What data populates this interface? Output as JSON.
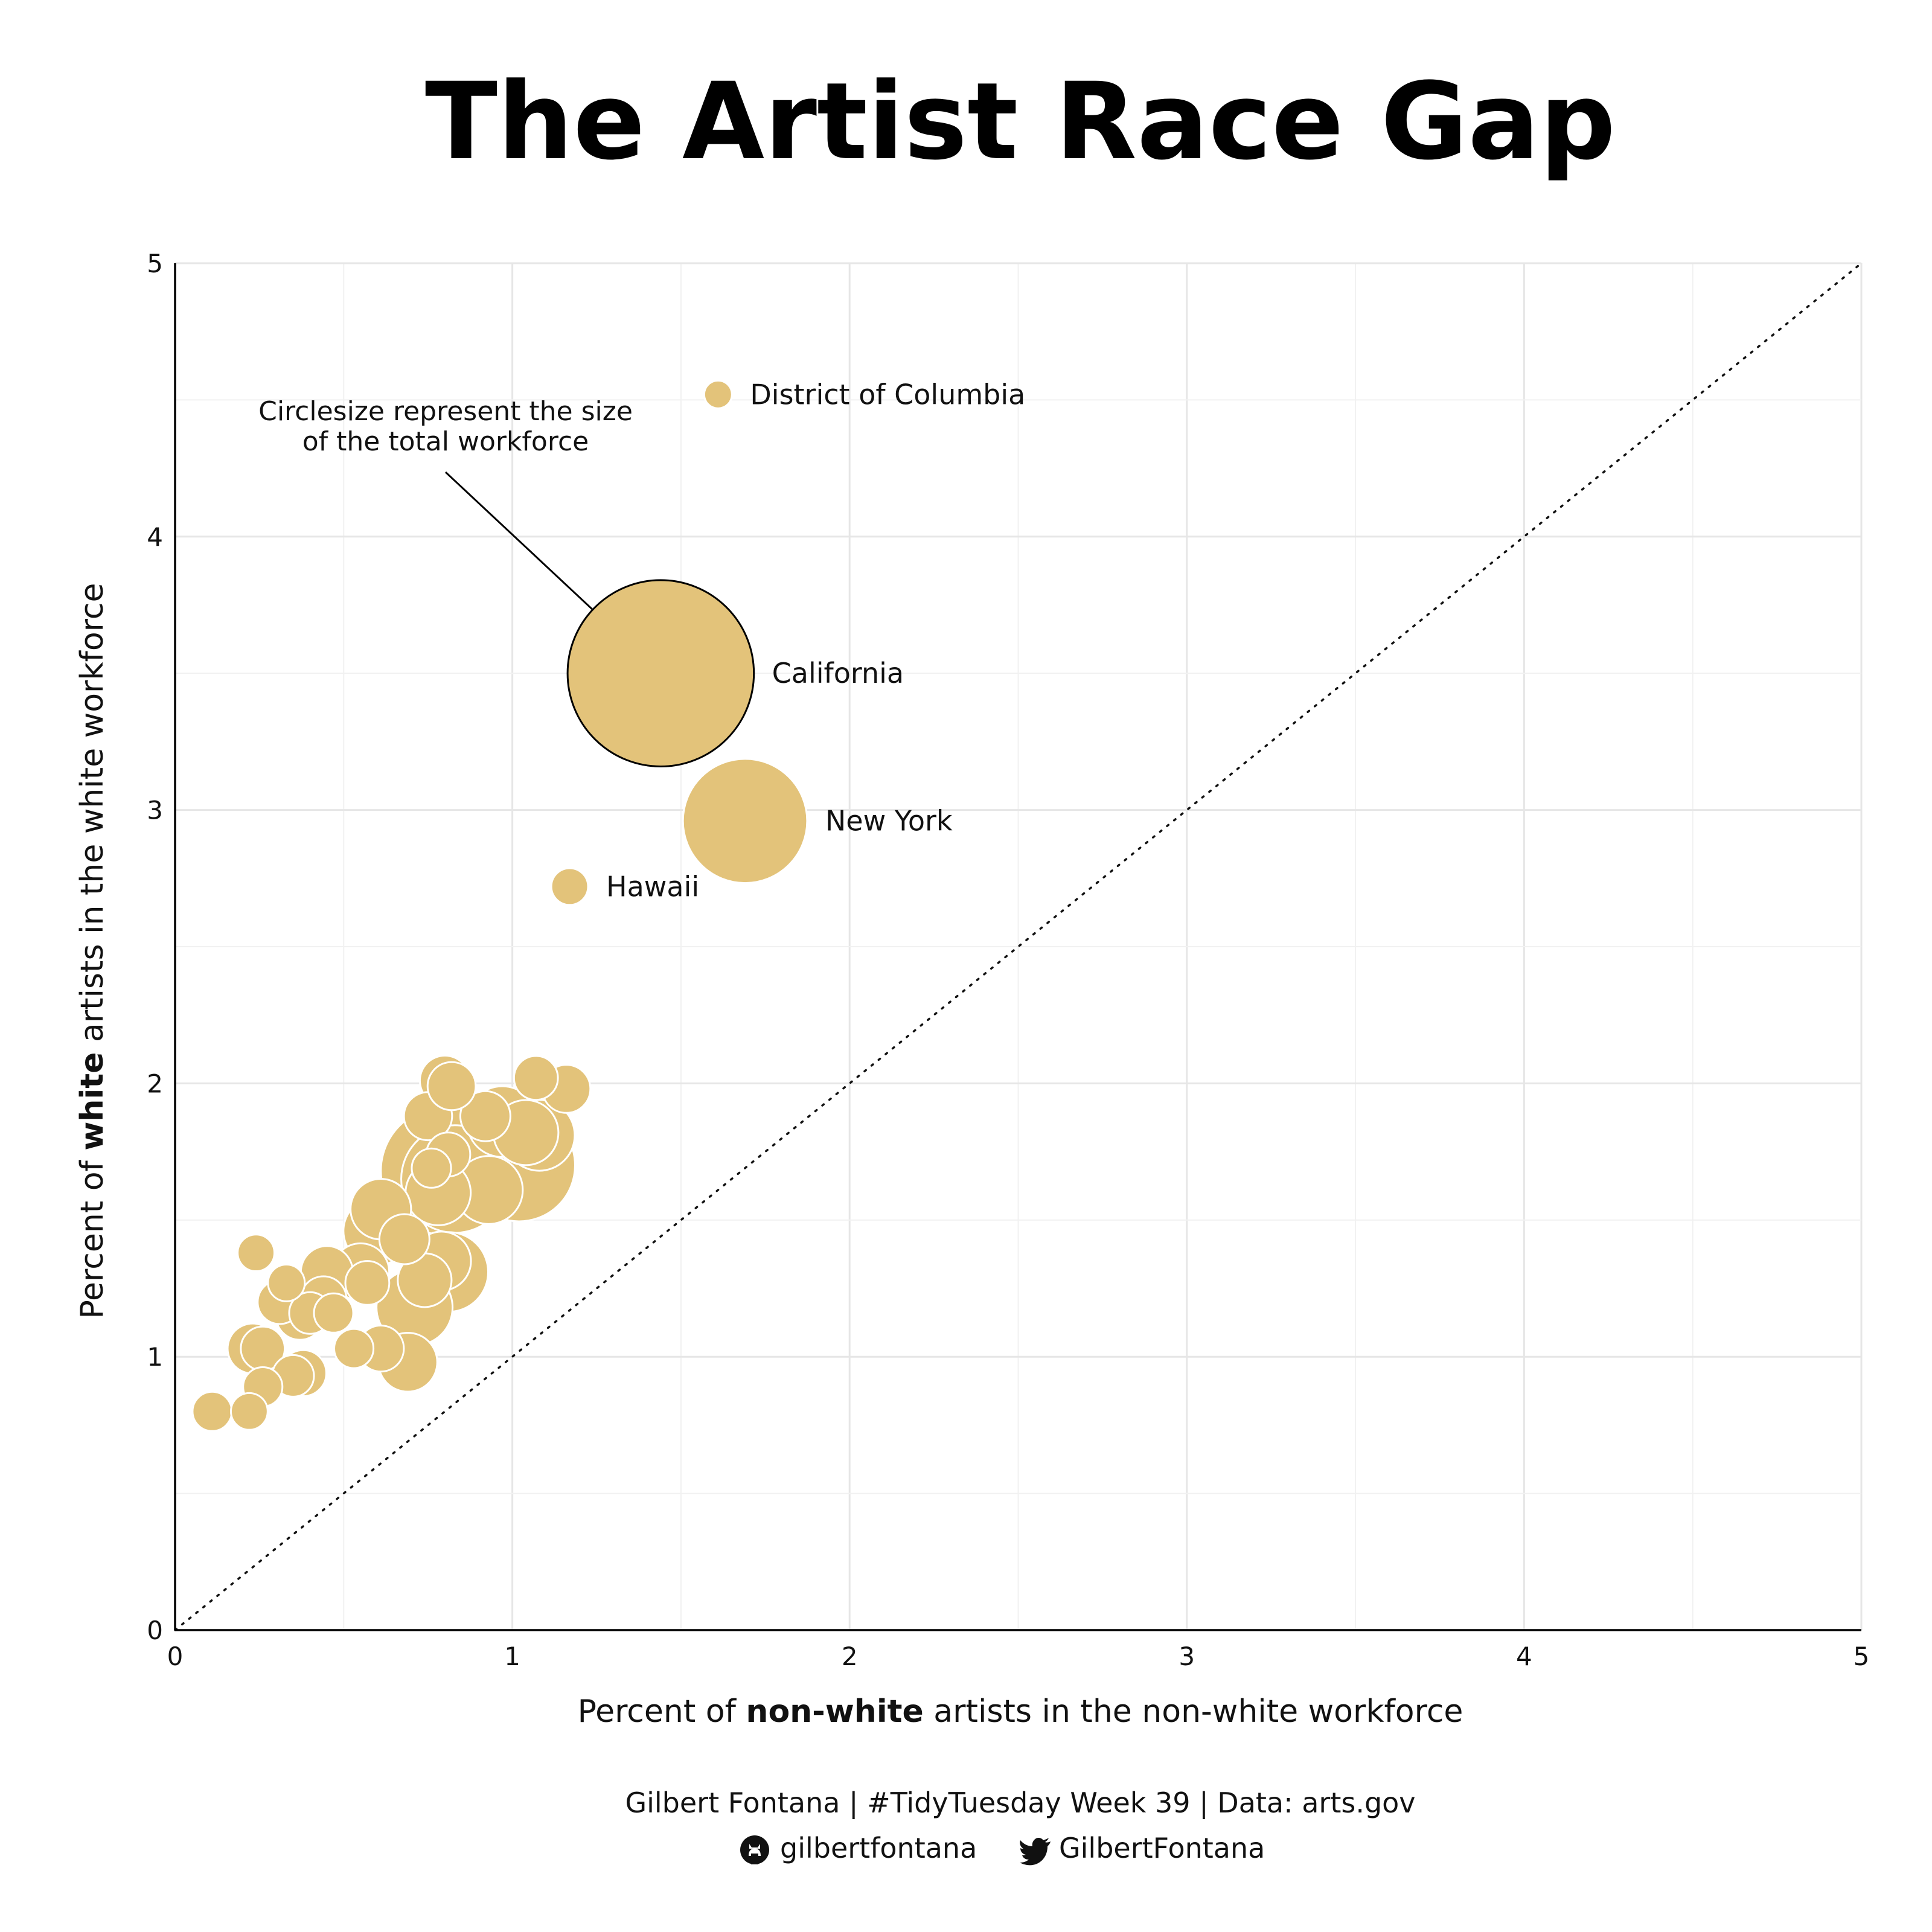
{
  "chart_data": {
    "type": "scatter",
    "title": "The Artist Race Gap",
    "xlabel": {
      "pre": "Percent of ",
      "bold": "non-white",
      "post": " artists in the non-white workforce"
    },
    "ylabel": {
      "pre": "Percent of ",
      "bold": "white",
      "post": " artists in the white workforce"
    },
    "xlim": [
      0,
      5
    ],
    "ylim": [
      0,
      5
    ],
    "x_ticks": [
      0,
      1,
      2,
      3,
      4,
      5
    ],
    "y_ticks": [
      0,
      1,
      2,
      3,
      4,
      5
    ],
    "grid": true,
    "reference_line": "y = x (dotted)",
    "point_color": "#e3c37a",
    "point_stroke": "#ffffff",
    "size_encoding": "total workforce",
    "annotation": {
      "lines": [
        "Circlesize represent the size",
        "of the total workforce"
      ],
      "points_to": "California"
    },
    "labeled_points": [
      {
        "label": "District of Columbia",
        "x": 1.61,
        "y": 4.52,
        "size": 0.4
      },
      {
        "label": "California",
        "x": 1.44,
        "y": 3.5,
        "size": 18
      },
      {
        "label": "New York",
        "x": 1.69,
        "y": 2.96,
        "size": 8
      },
      {
        "label": "Hawaii",
        "x": 1.17,
        "y": 2.72,
        "size": 0.7
      }
    ],
    "points": [
      {
        "x": 0.11,
        "y": 0.8,
        "size": 0.8
      },
      {
        "x": 0.22,
        "y": 0.8,
        "size": 0.7
      },
      {
        "x": 0.26,
        "y": 0.89,
        "size": 0.8
      },
      {
        "x": 0.35,
        "y": 0.93,
        "size": 0.9
      },
      {
        "x": 0.38,
        "y": 0.94,
        "size": 1.1
      },
      {
        "x": 0.26,
        "y": 1.03,
        "size": 1.0
      },
      {
        "x": 0.23,
        "y": 1.03,
        "size": 1.3
      },
      {
        "x": 0.24,
        "y": 1.38,
        "size": 0.7
      },
      {
        "x": 0.33,
        "y": 1.27,
        "size": 0.7
      },
      {
        "x": 0.31,
        "y": 1.2,
        "size": 1.0
      },
      {
        "x": 0.37,
        "y": 1.15,
        "size": 1.2
      },
      {
        "x": 0.4,
        "y": 1.16,
        "size": 0.9
      },
      {
        "x": 0.44,
        "y": 1.21,
        "size": 1.1
      },
      {
        "x": 0.47,
        "y": 1.16,
        "size": 0.8
      },
      {
        "x": 0.45,
        "y": 1.31,
        "size": 1.4
      },
      {
        "x": 0.53,
        "y": 1.03,
        "size": 0.8
      },
      {
        "x": 0.61,
        "y": 1.03,
        "size": 1.1
      },
      {
        "x": 0.57,
        "y": 1.27,
        "size": 1.0
      },
      {
        "x": 0.55,
        "y": 1.31,
        "size": 1.7
      },
      {
        "x": 0.69,
        "y": 0.98,
        "size": 1.8
      },
      {
        "x": 0.68,
        "y": 1.43,
        "size": 1.3
      },
      {
        "x": 0.6,
        "y": 1.46,
        "size": 2.4
      },
      {
        "x": 0.61,
        "y": 1.54,
        "size": 1.9
      },
      {
        "x": 0.71,
        "y": 1.18,
        "size": 3.0
      },
      {
        "x": 0.74,
        "y": 1.28,
        "size": 1.5
      },
      {
        "x": 0.79,
        "y": 1.35,
        "size": 1.8
      },
      {
        "x": 0.81,
        "y": 1.31,
        "size": 3.3
      },
      {
        "x": 0.75,
        "y": 1.88,
        "size": 1.2
      },
      {
        "x": 0.8,
        "y": 2.01,
        "size": 1.3
      },
      {
        "x": 0.82,
        "y": 1.99,
        "size": 1.2
      },
      {
        "x": 0.76,
        "y": 1.69,
        "size": 0.8
      },
      {
        "x": 0.81,
        "y": 1.74,
        "size": 1.0
      },
      {
        "x": 0.83,
        "y": 1.65,
        "size": 6.0
      },
      {
        "x": 0.8,
        "y": 1.68,
        "size": 8.5
      },
      {
        "x": 0.93,
        "y": 1.61,
        "size": 2.4
      },
      {
        "x": 0.78,
        "y": 1.6,
        "size": 2.2
      },
      {
        "x": 0.92,
        "y": 1.88,
        "size": 1.3
      },
      {
        "x": 0.97,
        "y": 1.86,
        "size": 2.6
      },
      {
        "x": 1.02,
        "y": 1.7,
        "size": 6.5
      },
      {
        "x": 1.08,
        "y": 1.81,
        "size": 2.6
      },
      {
        "x": 1.04,
        "y": 1.82,
        "size": 2.2
      },
      {
        "x": 1.07,
        "y": 2.02,
        "size": 1.0
      },
      {
        "x": 1.16,
        "y": 1.98,
        "size": 1.2
      }
    ]
  },
  "caption": {
    "line1": "Gilbert Fontana | #TidyTuesday Week 39 | Data: arts.gov",
    "github_handle": "gilbertfontana",
    "twitter_handle": "GilbertFontana",
    "github_icon": "github-icon",
    "twitter_icon": "twitter-icon"
  }
}
